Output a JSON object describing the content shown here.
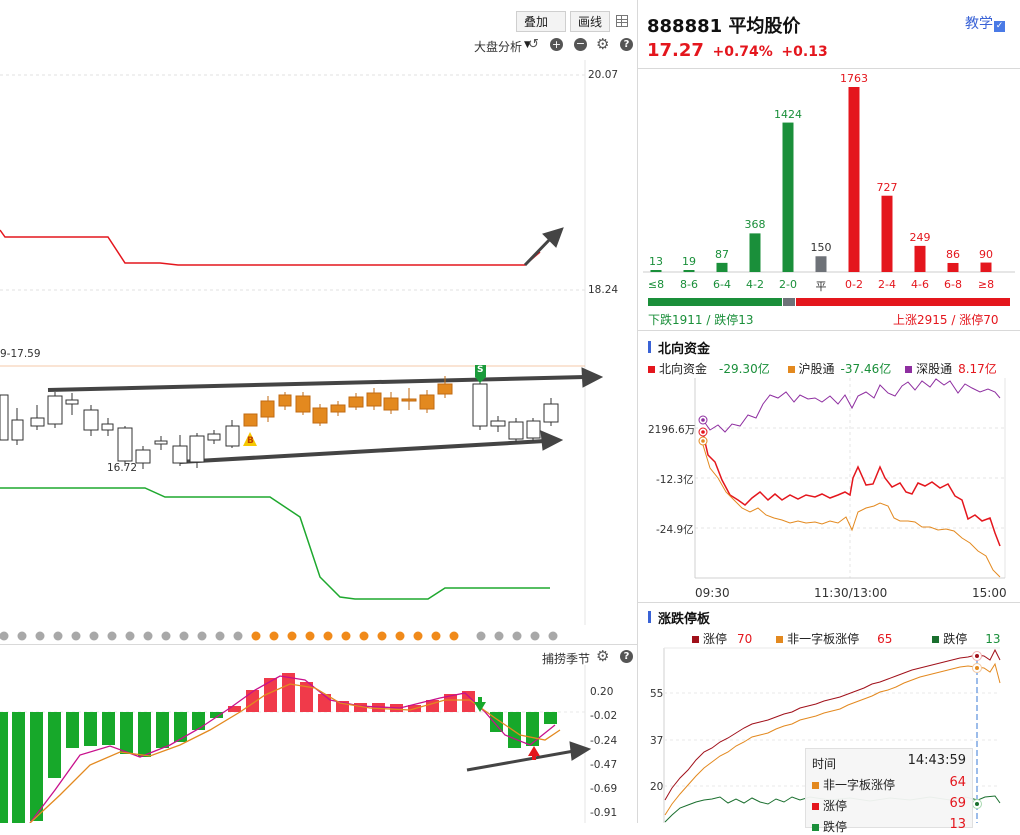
{
  "toolbar": {
    "overlay_label": "叠加",
    "draw_label": "画线"
  },
  "kline": {
    "analysis_label": "大盘分析",
    "y_ticks": [
      "20.07",
      "18.24"
    ],
    "range_label": "9-17.59",
    "low_label": "16.72",
    "buy_marker": "B",
    "sell_marker": "S",
    "colors": {
      "up": "#e3891f",
      "down": "#ffffff",
      "upper_line": "#e4161d",
      "lower_line": "#1ea82e"
    }
  },
  "indicator": {
    "name_label": "捕捞季节",
    "y_ticks": [
      "0.20",
      "-0.02",
      "-0.24",
      "-0.47",
      "-0.69",
      "-0.91"
    ]
  },
  "quote": {
    "code": "888881",
    "name": "平均股价",
    "price": "17.27",
    "change_pct": "+0.74%",
    "change": "+0.13",
    "teach_label": "教学"
  },
  "distribution": {
    "categories": [
      "≤8",
      "8-6",
      "6-4",
      "4-2",
      "2-0",
      "平",
      "0-2",
      "2-4",
      "4-6",
      "6-8",
      "≥8"
    ],
    "values": [
      13,
      19,
      87,
      368,
      1424,
      150,
      1763,
      727,
      249,
      86,
      90
    ],
    "colors": [
      "#1a8f3a",
      "#1a8f3a",
      "#1a8f3a",
      "#1a8f3a",
      "#1a8f3a",
      "#6e7278",
      "#e4161d",
      "#e4161d",
      "#e4161d",
      "#e4161d",
      "#e4161d"
    ],
    "down_text": "下跌1911 / 跌停13",
    "up_text": "上涨2915 / 涨停70"
  },
  "northbound": {
    "title": "北向资金",
    "legend": [
      {
        "name": "北向资金",
        "value": "-29.30亿",
        "color": "#e4161d"
      },
      {
        "name": "沪股通",
        "value": "-37.46亿",
        "color": "#e3891f"
      },
      {
        "name": "深股通",
        "value": "8.17亿",
        "color": "#8e2ea0"
      }
    ],
    "y_ticks": [
      "2196.6万",
      "-12.3亿",
      "-24.9亿"
    ],
    "x_ticks": [
      "09:30",
      "11:30/13:00",
      "15:00"
    ]
  },
  "limit": {
    "title": "涨跌停板",
    "legend": [
      {
        "name": "涨停",
        "value": "70",
        "color": "#a0101a"
      },
      {
        "name": "非一字板涨停",
        "value": "65",
        "color": "#e3891f"
      },
      {
        "name": "跌停",
        "value": "13",
        "color": "#1a6f2e"
      }
    ],
    "y_ticks": [
      "55",
      "37",
      "20"
    ],
    "tooltip": {
      "time_label": "时间",
      "time_value": "14:43:59",
      "rows": [
        {
          "name": "非一字板涨停",
          "value": "64",
          "color": "#e3891f"
        },
        {
          "name": "涨停",
          "value": "69",
          "color": "#e4161d"
        },
        {
          "name": "跌停",
          "value": "13",
          "color": "#1a8f3a"
        }
      ]
    }
  },
  "chart_data": [
    {
      "type": "bar",
      "categories": [
        "≤8",
        "8-6",
        "6-4",
        "4-2",
        "2-0",
        "平",
        "0-2",
        "2-4",
        "4-6",
        "6-8",
        "≥8"
      ],
      "values": [
        13,
        19,
        87,
        368,
        1424,
        150,
        1763,
        727,
        249,
        86,
        90
      ],
      "xlabel": "",
      "ylabel": ""
    }
  ]
}
